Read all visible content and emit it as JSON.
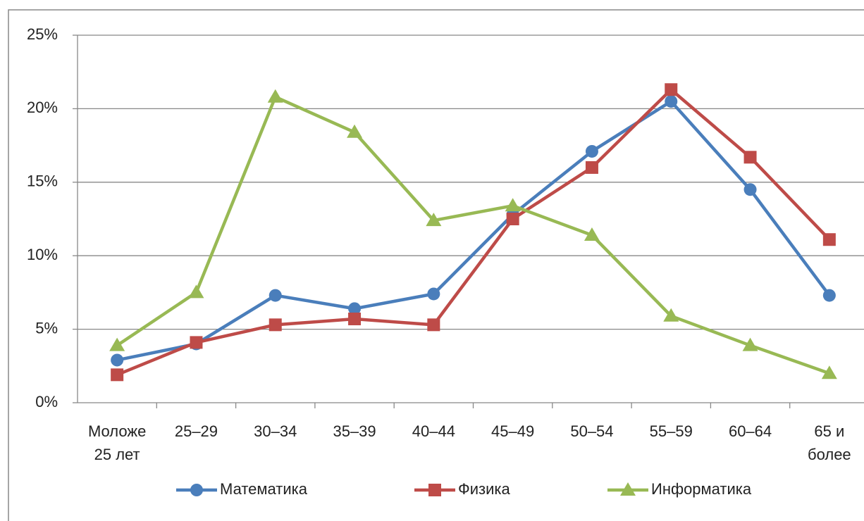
{
  "chart_data": {
    "type": "line",
    "categories": [
      "Моложе 25 лет",
      "25–29",
      "30–34",
      "35–39",
      "40–44",
      "45–49",
      "50–54",
      "55–59",
      "60–64",
      "65 и более"
    ],
    "series": [
      {
        "name": "Математика",
        "color": "#4a7ebb",
        "marker": "circle",
        "values": [
          2.9,
          4.0,
          7.3,
          6.4,
          7.4,
          12.8,
          17.1,
          20.5,
          14.5,
          7.3
        ]
      },
      {
        "name": "Физика",
        "color": "#be4b48",
        "marker": "square",
        "values": [
          1.9,
          4.1,
          5.3,
          5.7,
          5.3,
          12.5,
          16.0,
          21.3,
          16.7,
          11.1
        ]
      },
      {
        "name": "Информатика",
        "color": "#98b954",
        "marker": "triangle",
        "values": [
          3.9,
          7.5,
          20.8,
          18.4,
          12.4,
          13.4,
          11.4,
          5.9,
          3.9,
          2.0
        ]
      }
    ],
    "ylim": [
      0,
      25
    ],
    "yticks": [
      {
        "value": 0,
        "label": "0%"
      },
      {
        "value": 5,
        "label": "5%"
      },
      {
        "value": 10,
        "label": "10%"
      },
      {
        "value": 15,
        "label": "15%"
      },
      {
        "value": 20,
        "label": "20%"
      },
      {
        "value": 25,
        "label": "25%"
      }
    ],
    "grid": true,
    "legend": "bottom"
  }
}
